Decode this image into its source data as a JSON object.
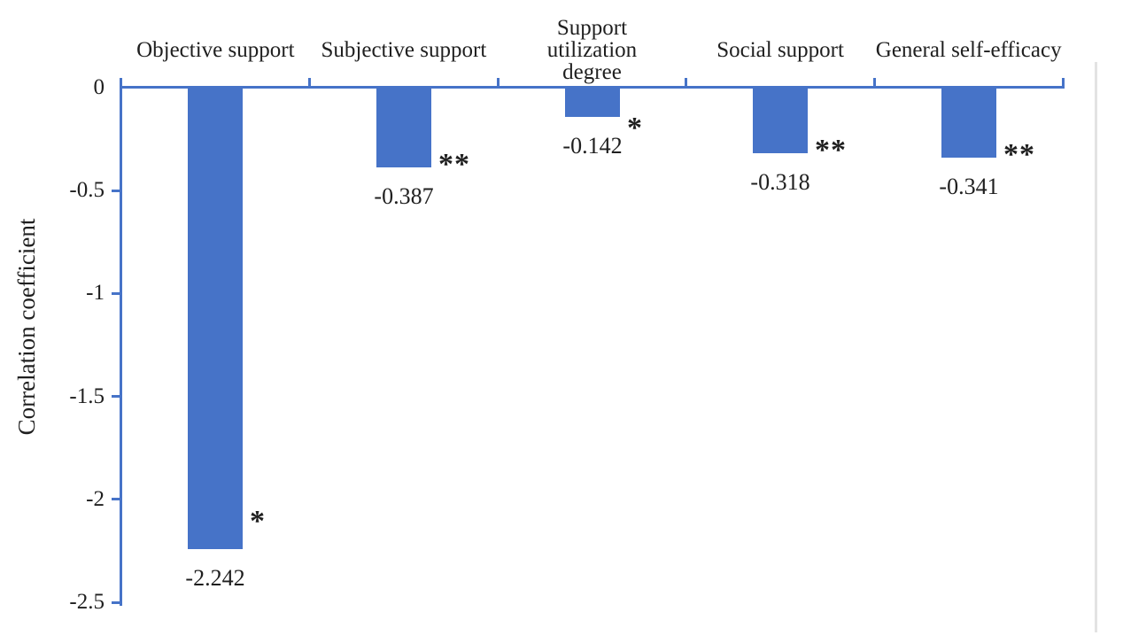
{
  "chart_data": {
    "type": "bar",
    "title": "",
    "ylabel": "Correlation coefficient",
    "xlabel": "",
    "categories": [
      "Objective support",
      "Subjective support",
      "Support utilization degree",
      "Social support",
      "General self-efficacy"
    ],
    "category_label_lines": [
      [
        "Objective support"
      ],
      [
        "Subjective support"
      ],
      [
        "Support",
        "utilization",
        "degree"
      ],
      [
        "Social support"
      ],
      [
        "General self-efficacy"
      ]
    ],
    "values": [
      -2.242,
      -0.387,
      -0.142,
      -0.318,
      -0.341
    ],
    "value_labels": [
      "-2.242",
      "-0.387",
      "-0.142",
      "-0.318",
      "-0.341"
    ],
    "significance": [
      "*",
      "**",
      "*",
      "**",
      "**"
    ],
    "ytick_labels": [
      "0",
      "-0.5",
      "-1",
      "-1.5",
      "-2",
      "-2.5"
    ],
    "ytick_values": [
      0,
      -0.5,
      -1,
      -1.5,
      -2,
      -2.5
    ],
    "ylim": [
      -2.5,
      0
    ],
    "grid": false,
    "legend": "none",
    "colors": {
      "bar": "#4673c8",
      "axis": "#4673c8",
      "text": "#1f1f1f",
      "right_border": "#e3e3e3"
    }
  }
}
